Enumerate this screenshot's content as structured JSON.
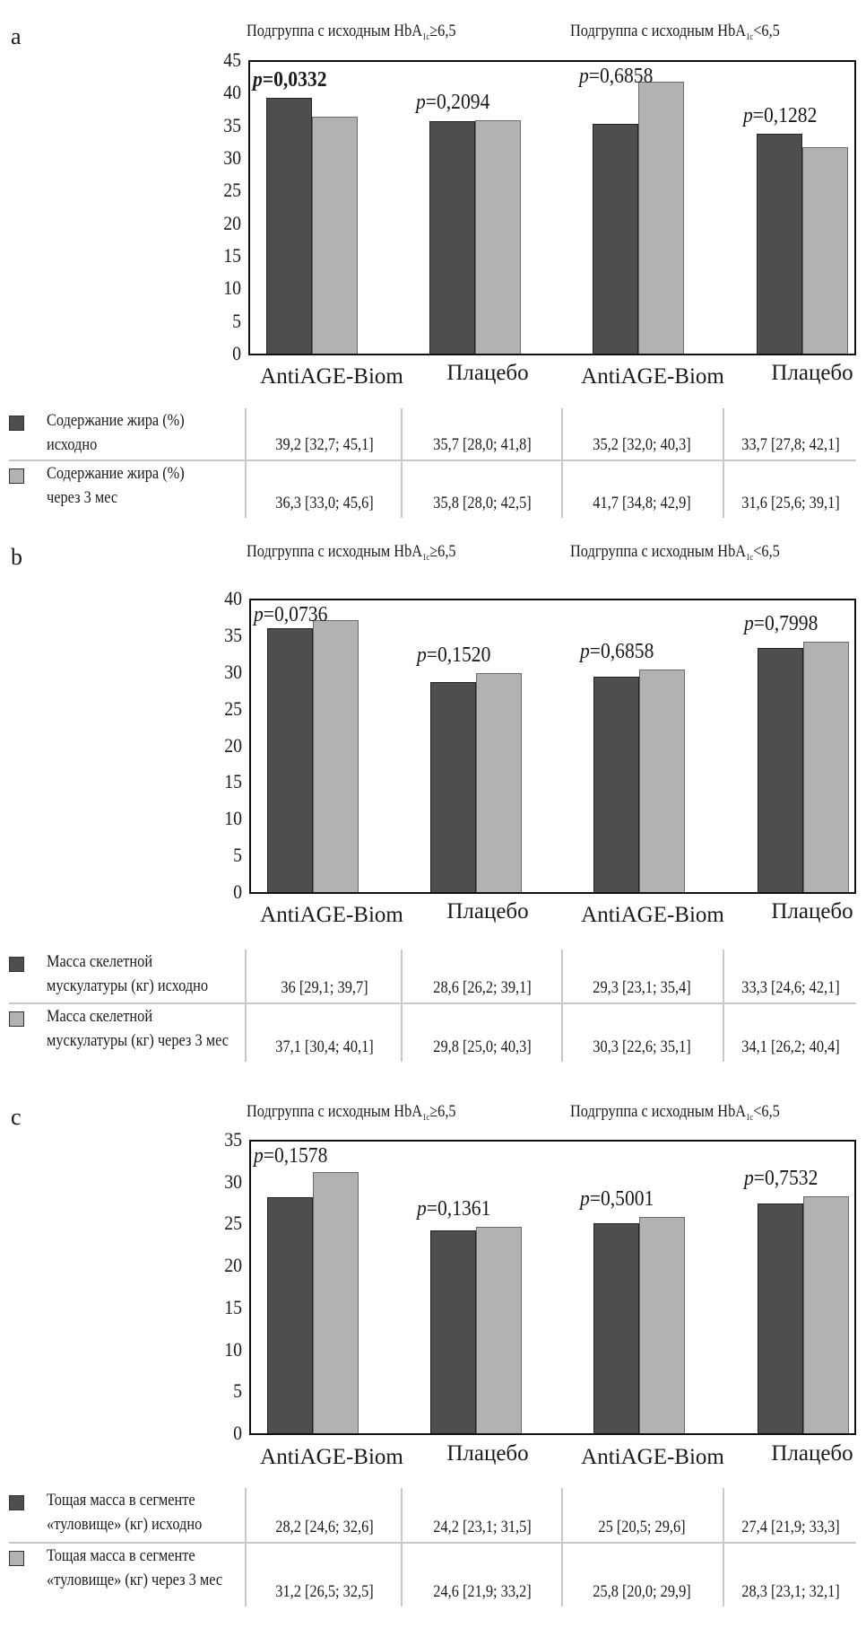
{
  "subgroup_headers": {
    "high": {
      "prefix": "Подгруппа с исходным HbA",
      "sub": "1c",
      "suffix": "≥6,5"
    },
    "low": {
      "prefix": "Подгруппа с исходным HbA",
      "sub": "1c",
      "suffix": "<6,5"
    }
  },
  "colors": {
    "baseline": "#4e4e50",
    "follow_up": "#b1b2b4",
    "frame": "#111111",
    "grid_lines": "#c8c8c8"
  },
  "chart_data": [
    {
      "id": "a",
      "panel_label": "a",
      "type": "bar",
      "categories": [
        "AntiAGE-Biom",
        "Плацебо",
        "AntiAGE-Biom",
        "Плацебо"
      ],
      "category_subgroups": [
        "HbA1c≥6,5",
        "HbA1c≥6,5",
        "HbA1c<6,5",
        "HbA1c<6,5"
      ],
      "ylim": [
        0,
        45
      ],
      "yticks": [
        "0",
        "5",
        "10",
        "15",
        "20",
        "25",
        "30",
        "35",
        "40",
        "45"
      ],
      "series": [
        {
          "name": "Содержание жира (%) исходно",
          "values": [
            39.2,
            35.7,
            35.2,
            33.7
          ]
        },
        {
          "name": "Содержание жира (%) через 3 мес",
          "values": [
            36.3,
            35.8,
            41.7,
            31.6
          ]
        }
      ],
      "annotations": [
        {
          "prefix": "p",
          "text": "=0,0332",
          "bold": true
        },
        {
          "prefix": "p",
          "text": "=0,2094",
          "bold": false
        },
        {
          "prefix": "p",
          "text": "=0,6858",
          "bold": false
        },
        {
          "prefix": "p",
          "text": "=0,1282",
          "bold": false
        }
      ],
      "table": {
        "rows": [
          {
            "label_lines": [
              "Содержание жира (%)",
              "исходно"
            ],
            "series": "baseline",
            "cells": [
              "39,2 [32,7; 45,1]",
              "35,7 [28,0; 41,8]",
              "35,2 [32,0; 40,3]",
              "33,7 [27,8; 42,1]"
            ]
          },
          {
            "label_lines": [
              "Содержание жира (%)",
              "через 3 мес"
            ],
            "series": "follow_up",
            "cells": [
              "36,3 [33,0; 45,6]",
              "35,8 [28,0; 42,5]",
              "41,7 [34,8; 42,9]",
              "31,6 [25,6; 39,1]"
            ]
          }
        ]
      },
      "grid": false,
      "legend": "bottom-table"
    },
    {
      "id": "b",
      "panel_label": "b",
      "type": "bar",
      "categories": [
        "AntiAGE-Biom",
        "Плацебо",
        "AntiAGE-Biom",
        "Плацебо"
      ],
      "category_subgroups": [
        "HbA1c≥6,5",
        "HbA1c≥6,5",
        "HbA1c<6,5",
        "HbA1c<6,5"
      ],
      "ylim": [
        0,
        40
      ],
      "yticks": [
        "0",
        "5",
        "10",
        "15",
        "20",
        "25",
        "30",
        "35",
        "40"
      ],
      "series": [
        {
          "name": "Масса скелетной мускулатуры (кг) исходно",
          "values": [
            36,
            28.6,
            29.3,
            33.3
          ]
        },
        {
          "name": "Масса скелетной мускулатуры (кг) через 3 мес",
          "values": [
            37.1,
            29.8,
            30.3,
            34.1
          ]
        }
      ],
      "annotations": [
        {
          "prefix": "p",
          "text": "=0,0736",
          "bold": false
        },
        {
          "prefix": "p",
          "text": "=0,1520",
          "bold": false
        },
        {
          "prefix": "p",
          "text": "=0,6858",
          "bold": false
        },
        {
          "prefix": "p",
          "text": "=0,7998",
          "bold": false
        }
      ],
      "table": {
        "rows": [
          {
            "label_lines": [
              "Масса скелетной",
              "мускулатуры (кг) исходно"
            ],
            "series": "baseline",
            "cells": [
              "36 [29,1; 39,7]",
              "28,6 [26,2; 39,1]",
              "29,3 [23,1; 35,4]",
              "33,3 [24,6; 42,1]"
            ]
          },
          {
            "label_lines": [
              "Масса скелетной",
              "мускулатуры (кг) через 3 мес"
            ],
            "series": "follow_up",
            "cells": [
              "37,1 [30,4; 40,1]",
              "29,8 [25,0; 40,3]",
              "30,3 [22,6; 35,1]",
              "34,1 [26,2; 40,4]"
            ]
          }
        ]
      },
      "grid": false,
      "legend": "bottom-table"
    },
    {
      "id": "c",
      "panel_label": "c",
      "type": "bar",
      "categories": [
        "AntiAGE-Biom",
        "Плацебо",
        "AntiAGE-Biom",
        "Плацебо"
      ],
      "category_subgroups": [
        "HbA1c≥6,5",
        "HbA1c≥6,5",
        "HbA1c<6,5",
        "HbA1c<6,5"
      ],
      "ylim": [
        0,
        35
      ],
      "yticks": [
        "0",
        "5",
        "10",
        "15",
        "20",
        "25",
        "30",
        "35"
      ],
      "series": [
        {
          "name": "Тощая масса в сегменте «туловище» (кг) исходно",
          "values": [
            28.2,
            24.2,
            25,
            27.4
          ]
        },
        {
          "name": "Тощая масса в сегменте «туловище» (кг) через 3 мес",
          "values": [
            31.2,
            24.6,
            25.8,
            28.3
          ]
        }
      ],
      "annotations": [
        {
          "prefix": "p",
          "text": "=0,1578",
          "bold": false
        },
        {
          "prefix": "p",
          "text": "=0,1361",
          "bold": false
        },
        {
          "prefix": "p",
          "text": "=0,5001",
          "bold": false
        },
        {
          "prefix": "p",
          "text": "=0,7532",
          "bold": false
        }
      ],
      "table": {
        "rows": [
          {
            "label_lines": [
              "Тощая масса в сегменте",
              "«туловище» (кг) исходно"
            ],
            "series": "baseline",
            "cells": [
              "28,2 [24,6; 32,6]",
              "24,2 [23,1; 31,5]",
              "25 [20,5; 29,6]",
              "27,4 [21,9; 33,3]"
            ]
          },
          {
            "label_lines": [
              "Тощая масса в сегменте",
              "«туловище» (кг) через 3 мес"
            ],
            "series": "follow_up",
            "cells": [
              "31,2 [26,5; 32,5]",
              "24,6 [21,9; 33,2]",
              "25,8 [20,0; 29,9]",
              "28,3 [23,1; 32,1]"
            ]
          }
        ]
      },
      "grid": false,
      "legend": "bottom-table"
    }
  ]
}
